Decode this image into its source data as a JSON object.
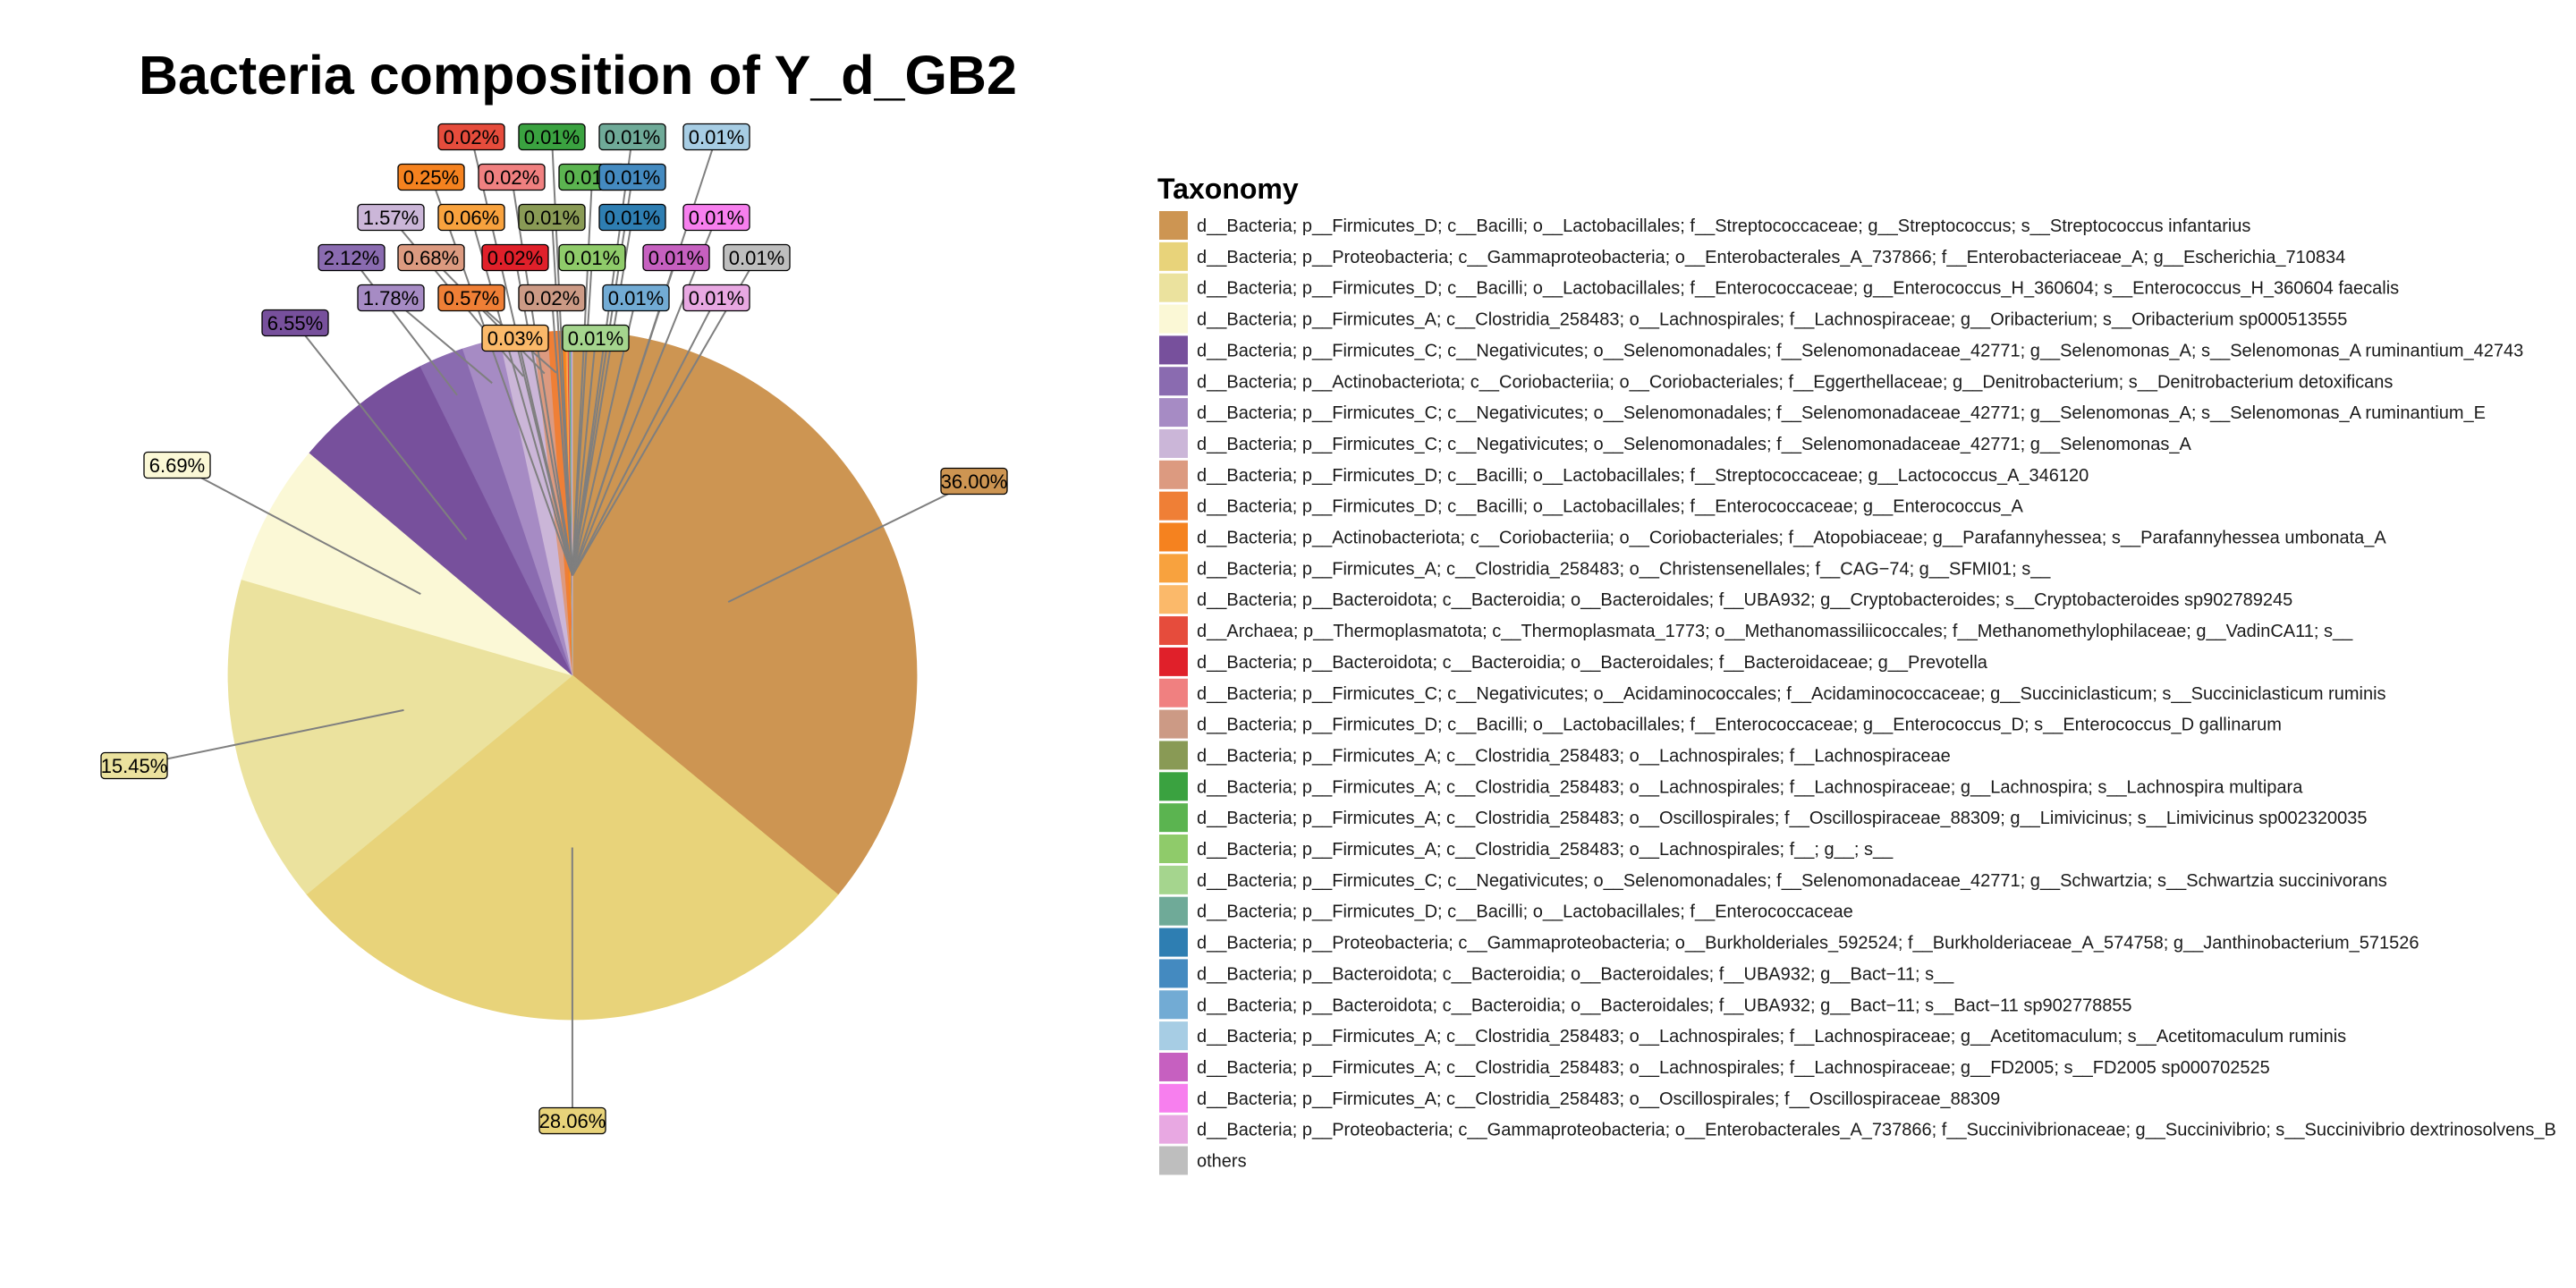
{
  "chart_data": {
    "type": "pie",
    "title": "Bacteria composition of Y_d_GB2",
    "legend_title": "Taxonomy",
    "legend_position": "right",
    "slices": [
      {
        "label": "d__Bacteria; p__Firmicutes_D; c__Bacilli; o__Lactobacillales; f__Streptococcaceae; g__Streptococcus; s__Streptococcus infantarius",
        "value": 36.0,
        "text": "36.00%",
        "color": "#CD9552"
      },
      {
        "label": "d__Bacteria; p__Proteobacteria; c__Gammaproteobacteria; o__Enterobacterales_A_737866; f__Enterobacteriaceae_A; g__Escherichia_710834",
        "value": 28.06,
        "text": "28.06%",
        "color": "#E8D37A"
      },
      {
        "label": "d__Bacteria; p__Firmicutes_D; c__Bacilli; o__Lactobacillales; f__Enterococcaceae; g__Enterococcus_H_360604; s__Enterococcus_H_360604 faecalis",
        "value": 15.45,
        "text": "15.45%",
        "color": "#EBE29E"
      },
      {
        "label": "d__Bacteria; p__Firmicutes_A; c__Clostridia_258483; o__Lachnospirales; f__Lachnospiraceae; g__Oribacterium; s__Oribacterium sp000513555",
        "value": 6.69,
        "text": "6.69%",
        "color": "#FBF8D6"
      },
      {
        "label": "d__Bacteria; p__Firmicutes_C; c__Negativicutes; o__Selenomonadales; f__Selenomonadaceae_42771; g__Selenomonas_A; s__Selenomonas_A ruminantium_42743",
        "value": 6.55,
        "text": "6.55%",
        "color": "#77509C"
      },
      {
        "label": "d__Bacteria; p__Actinobacteriota; c__Coriobacteriia; o__Coriobacteriales; f__Eggerthellaceae; g__Denitrobacterium; s__Denitrobacterium detoxificans",
        "value": 2.12,
        "text": "2.12%",
        "color": "#8A6BB0"
      },
      {
        "label": "d__Bacteria; p__Firmicutes_C; c__Negativicutes; o__Selenomonadales; f__Selenomonadaceae_42771; g__Selenomonas_A; s__Selenomonas_A ruminantium_E",
        "value": 1.78,
        "text": "1.78%",
        "color": "#A68BC4"
      },
      {
        "label": "d__Bacteria; p__Firmicutes_C; c__Negativicutes; o__Selenomonadales; f__Selenomonadaceae_42771; g__Selenomonas_A",
        "value": 1.57,
        "text": "1.57%",
        "color": "#CBB6D8"
      },
      {
        "label": "d__Bacteria; p__Firmicutes_D; c__Bacilli; o__Lactobacillales; f__Streptococcaceae; g__Lactococcus_A_346120",
        "value": 0.68,
        "text": "0.68%",
        "color": "#DC9A80"
      },
      {
        "label": "d__Bacteria; p__Firmicutes_D; c__Bacilli; o__Lactobacillales; f__Enterococcaceae; g__Enterococcus_A",
        "value": 0.57,
        "text": "0.57%",
        "color": "#EF7F36"
      },
      {
        "label": "d__Bacteria; p__Actinobacteriota; c__Coriobacteriia; o__Coriobacteriales; f__Atopobiaceae; g__Parafannyhessea; s__Parafannyhessea umbonata_A",
        "value": 0.25,
        "text": "0.25%",
        "color": "#F5821F"
      },
      {
        "label": "d__Bacteria; p__Firmicutes_A; c__Clostridia_258483; o__Christensenellales; f__CAG−74; g__SFMI01; s__",
        "value": 0.06,
        "text": "0.06%",
        "color": "#F8A23E"
      },
      {
        "label": "d__Bacteria; p__Bacteroidota; c__Bacteroidia; o__Bacteroidales; f__UBA932; g__Cryptobacteroides; s__Cryptobacteroides sp902789245",
        "value": 0.03,
        "text": "0.03%",
        "color": "#FBB96A"
      },
      {
        "label": "d__Archaea; p__Thermoplasmatota; c__Thermoplasmata_1773; o__Methanomassiliicoccales; f__Methanomethylophilaceae; g__VadinCA11; s__",
        "value": 0.02,
        "text": "0.02%",
        "color": "#E64C3C"
      },
      {
        "label": "d__Bacteria; p__Bacteroidota; c__Bacteroidia; o__Bacteroidales; f__Bacteroidaceae; g__Prevotella",
        "value": 0.02,
        "text": "0.02%",
        "color": "#E0202A"
      },
      {
        "label": "d__Bacteria; p__Firmicutes_C; c__Negativicutes; o__Acidaminococcales; f__Acidaminococcaceae; g__Succiniclasticum; s__Succiniclasticum ruminis",
        "value": 0.02,
        "text": "0.02%",
        "color": "#F08080"
      },
      {
        "label": "d__Bacteria; p__Firmicutes_D; c__Bacilli; o__Lactobacillales; f__Enterococcaceae; g__Enterococcus_D; s__Enterococcus_D gallinarum",
        "value": 0.02,
        "text": "0.02%",
        "color": "#CC9A85"
      },
      {
        "label": "d__Bacteria; p__Firmicutes_A; c__Clostridia_258483; o__Lachnospirales; f__Lachnospiraceae",
        "value": 0.01,
        "text": "0.01%",
        "color": "#899A55"
      },
      {
        "label": "d__Bacteria; p__Firmicutes_A; c__Clostridia_258483; o__Lachnospirales; f__Lachnospiraceae; g__Lachnospira; s__Lachnospira multipara",
        "value": 0.01,
        "text": "0.01%",
        "color": "#3AA240"
      },
      {
        "label": "d__Bacteria; p__Firmicutes_A; c__Clostridia_258483; o__Oscillospirales; f__Oscillospiraceae_88309; g__Limivicinus; s__Limivicinus sp002320035",
        "value": 0.01,
        "text": "0.01%",
        "color": "#5BB450"
      },
      {
        "label": "d__Bacteria; p__Firmicutes_A; c__Clostridia_258483; o__Lachnospirales; f__; g__; s__",
        "value": 0.01,
        "text": "0.01%",
        "color": "#8FCB6A"
      },
      {
        "label": "d__Bacteria; p__Firmicutes_C; c__Negativicutes; o__Selenomonadales; f__Selenomonadaceae_42771; g__Schwartzia; s__Schwartzia succinivorans",
        "value": 0.01,
        "text": "0.01%",
        "color": "#A5D58E"
      },
      {
        "label": "d__Bacteria; p__Firmicutes_D; c__Bacilli; o__Lactobacillales; f__Enterococcaceae",
        "value": 0.01,
        "text": "0.01%",
        "color": "#6FAA98"
      },
      {
        "label": "d__Bacteria; p__Proteobacteria; c__Gammaproteobacteria; o__Burkholderiales_592524; f__Burkholderiaceae_A_574758; g__Janthinobacterium_571526",
        "value": 0.01,
        "text": "0.01%",
        "color": "#2E7EB2"
      },
      {
        "label": "d__Bacteria; p__Bacteroidota; c__Bacteroidia; o__Bacteroidales; f__UBA932; g__Bact−11; s__",
        "value": 0.01,
        "text": "0.01%",
        "color": "#448AC0"
      },
      {
        "label": "d__Bacteria; p__Bacteroidota; c__Bacteroidia; o__Bacteroidales; f__UBA932; g__Bact−11; s__Bact−11 sp902778855",
        "value": 0.01,
        "text": "0.01%",
        "color": "#72ABD4"
      },
      {
        "label": "d__Bacteria; p__Firmicutes_A; c__Clostridia_258483; o__Lachnospirales; f__Lachnospiraceae; g__Acetitomaculum; s__Acetitomaculum ruminis",
        "value": 0.01,
        "text": "0.01%",
        "color": "#A7CDE4"
      },
      {
        "label": "d__Bacteria; p__Firmicutes_A; c__Clostridia_258483; o__Lachnospirales; f__Lachnospiraceae; g__FD2005; s__FD2005 sp000702525",
        "value": 0.01,
        "text": "0.01%",
        "color": "#C660C0"
      },
      {
        "label": "d__Bacteria; p__Firmicutes_A; c__Clostridia_258483; o__Oscillospirales; f__Oscillospiraceae_88309",
        "value": 0.01,
        "text": "0.01%",
        "color": "#F77FEE"
      },
      {
        "label": "d__Bacteria; p__Proteobacteria; c__Gammaproteobacteria; o__Enterobacterales_A_737866; f__Succinivibrionaceae; g__Succinivibrio; s__Succinivibrio dextrinosolvens_B",
        "value": 0.01,
        "text": "0.01%",
        "color": "#E8A8E2"
      },
      {
        "label": "others",
        "value": 0.01,
        "text": "0.01%",
        "color": "#BEBEBE"
      }
    ]
  }
}
